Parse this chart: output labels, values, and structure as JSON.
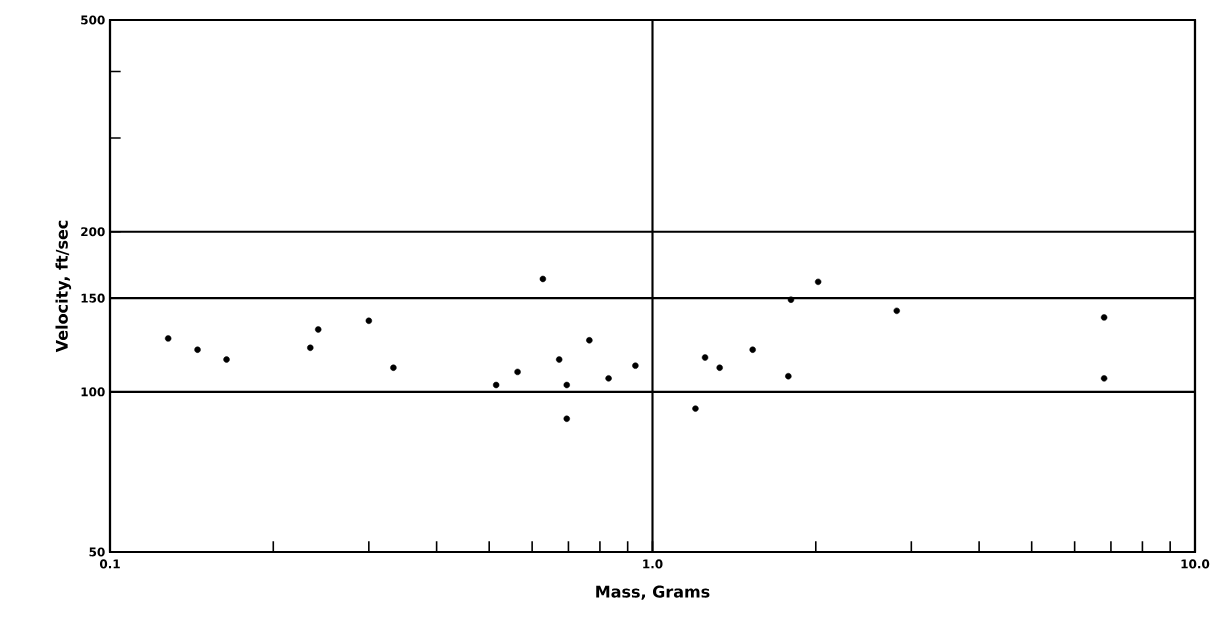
{
  "chart_data": {
    "type": "scatter",
    "xlabel": "Mass, Grams",
    "ylabel": "Velocity, ft/sec",
    "log": "xy",
    "grid": true,
    "marker": "circle",
    "xlim": [
      0.1,
      10
    ],
    "ylim": [
      50,
      500
    ],
    "xticks": [
      0.1,
      {
        "value": 0.2,
        "label": null
      },
      {
        "value": 0.3,
        "label": null
      },
      {
        "value": 0.4,
        "label": null
      },
      {
        "value": 0.5,
        "label": null
      },
      {
        "value": 0.6,
        "label": null
      },
      {
        "value": 0.7,
        "label": null
      },
      {
        "value": 0.8,
        "label": null
      },
      {
        "value": 0.9,
        "label": null
      },
      {
        "value": 1,
        "label": "1.0"
      },
      {
        "value": 2,
        "label": null
      },
      {
        "value": 3,
        "label": null
      },
      {
        "value": 4,
        "label": null
      },
      {
        "value": 5,
        "label": null
      },
      {
        "value": 6,
        "label": null
      },
      {
        "value": 7,
        "label": null
      },
      {
        "value": 8,
        "label": null
      },
      {
        "value": 9,
        "label": null
      },
      {
        "value": 10,
        "label": "10.0"
      }
    ],
    "yticks": [
      50,
      100,
      150,
      200,
      {
        "value": 300,
        "label": null
      },
      {
        "value": 400,
        "label": null
      },
      500
    ],
    "x": [
      0.128,
      0.145,
      0.164,
      0.234,
      0.242,
      0.3,
      0.333,
      0.515,
      0.564,
      0.628,
      0.673,
      0.695,
      0.695,
      0.765,
      0.83,
      0.93,
      1.2,
      1.25,
      1.33,
      1.53,
      1.78,
      1.8,
      2.02,
      2.82,
      6.8,
      6.8
    ],
    "series": [
      {
        "color": "#000000",
        "values": [
          126,
          120,
          115,
          121,
          131,
          136,
          111,
          103,
          109,
          163,
          115,
          103,
          89,
          125,
          106,
          112,
          93,
          116,
          111,
          120,
          107,
          149,
          161,
          142,
          138,
          106
        ]
      }
    ]
  }
}
